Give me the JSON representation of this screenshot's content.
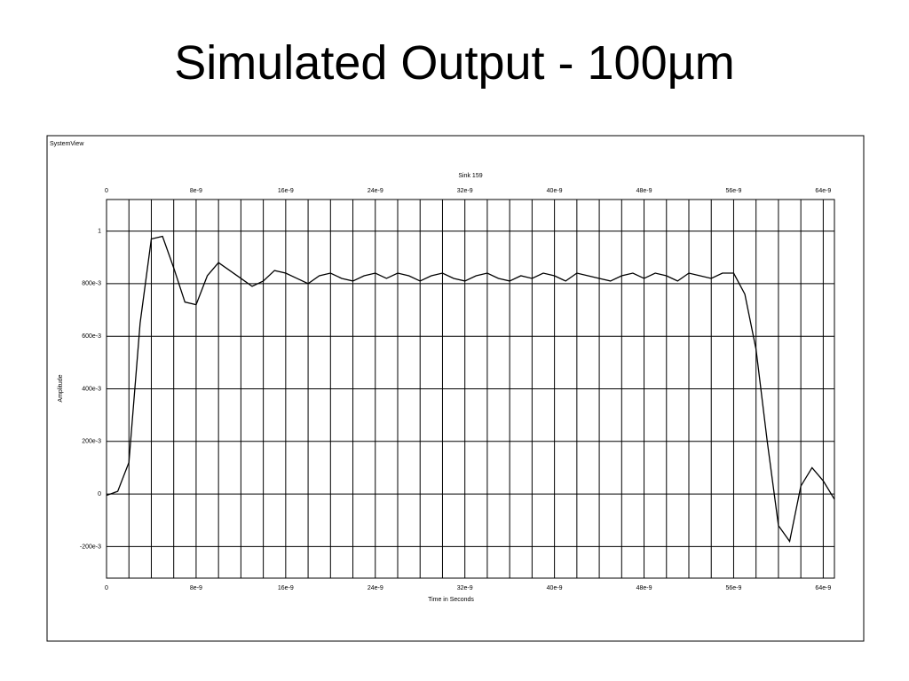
{
  "slide_title": "Simulated Output - 100µm",
  "chart_data": {
    "type": "line",
    "window_label": "SystemView",
    "title": "Sink 159",
    "xlabel": "Time in Seconds",
    "ylabel": "Amplitude",
    "x": [
      0,
      1e-09,
      2e-09,
      3e-09,
      4e-09,
      5e-09,
      6e-09,
      7e-09,
      8e-09,
      9e-09,
      1e-08,
      1.1e-08,
      1.2e-08,
      1.3e-08,
      1.4e-08,
      1.5e-08,
      1.6e-08,
      1.7e-08,
      1.8e-08,
      1.9e-08,
      2e-08,
      2.1e-08,
      2.2e-08,
      2.3e-08,
      2.4e-08,
      2.5e-08,
      2.6e-08,
      2.7e-08,
      2.8e-08,
      2.9e-08,
      3e-08,
      3.1e-08,
      3.2e-08,
      3.3e-08,
      3.4e-08,
      3.5e-08,
      3.6e-08,
      3.7e-08,
      3.8e-08,
      3.9e-08,
      4e-08,
      4.1e-08,
      4.2e-08,
      4.3e-08,
      4.4e-08,
      4.5e-08,
      4.6e-08,
      4.7e-08,
      4.8e-08,
      4.9e-08,
      5e-08,
      5.1e-08,
      5.2e-08,
      5.3e-08,
      5.4e-08,
      5.5e-08,
      5.6e-08,
      5.7e-08,
      5.8e-08,
      5.9e-08,
      6e-08,
      6.1e-08,
      6.2e-08,
      6.3e-08,
      6.4e-08,
      6.5e-08
    ],
    "series": [
      {
        "name": "Sink 159",
        "color": "#000000",
        "values": [
          -0.005,
          0.01,
          0.12,
          0.65,
          0.97,
          0.98,
          0.86,
          0.73,
          0.72,
          0.83,
          0.88,
          0.85,
          0.82,
          0.79,
          0.81,
          0.85,
          0.84,
          0.82,
          0.8,
          0.83,
          0.84,
          0.82,
          0.81,
          0.83,
          0.84,
          0.82,
          0.84,
          0.83,
          0.81,
          0.83,
          0.84,
          0.82,
          0.81,
          0.83,
          0.84,
          0.82,
          0.81,
          0.83,
          0.82,
          0.84,
          0.83,
          0.81,
          0.84,
          0.83,
          0.82,
          0.81,
          0.83,
          0.84,
          0.82,
          0.84,
          0.83,
          0.81,
          0.84,
          0.83,
          0.82,
          0.84,
          0.84,
          0.76,
          0.55,
          0.2,
          -0.12,
          -0.18,
          0.03,
          0.1,
          0.05,
          -0.02
        ]
      }
    ],
    "xlim": [
      0,
      6.5e-08
    ],
    "ylim": [
      -0.32,
      1.12
    ],
    "xticks": [
      0,
      {
        "value": 8e-09,
        "label": "8e-9"
      },
      {
        "value": 1.6e-08,
        "label": "16e-9"
      },
      {
        "value": 2.4e-08,
        "label": "24e-9"
      },
      {
        "value": 3.2e-08,
        "label": "32e-9"
      },
      {
        "value": 4e-08,
        "label": "40e-9"
      },
      {
        "value": 4.8e-08,
        "label": "48e-9"
      },
      {
        "value": 5.6e-08,
        "label": "56e-9"
      },
      {
        "value": 6.4e-08,
        "label": "64e-9"
      }
    ],
    "xminorticks": [
      2e-09,
      4e-09,
      6e-09,
      1e-08,
      1.2e-08,
      1.4e-08,
      1.8e-08,
      2e-08,
      2.2e-08,
      2.6e-08,
      2.8e-08,
      3e-08,
      3.4e-08,
      3.6e-08,
      3.8e-08,
      4.2e-08,
      4.4e-08,
      4.6e-08,
      5e-08,
      5.2e-08,
      5.4e-08,
      5.8e-08,
      6e-08,
      6.2e-08
    ],
    "yticks": [
      1,
      {
        "value": 0.8,
        "label": "800e-3"
      },
      {
        "value": 0.6,
        "label": "600e-3"
      },
      {
        "value": 0.4,
        "label": "400e-3"
      },
      {
        "value": 0.2,
        "label": "200e-3"
      },
      0,
      {
        "value": -0.2,
        "label": "-200e-3"
      }
    ],
    "grid": true
  }
}
